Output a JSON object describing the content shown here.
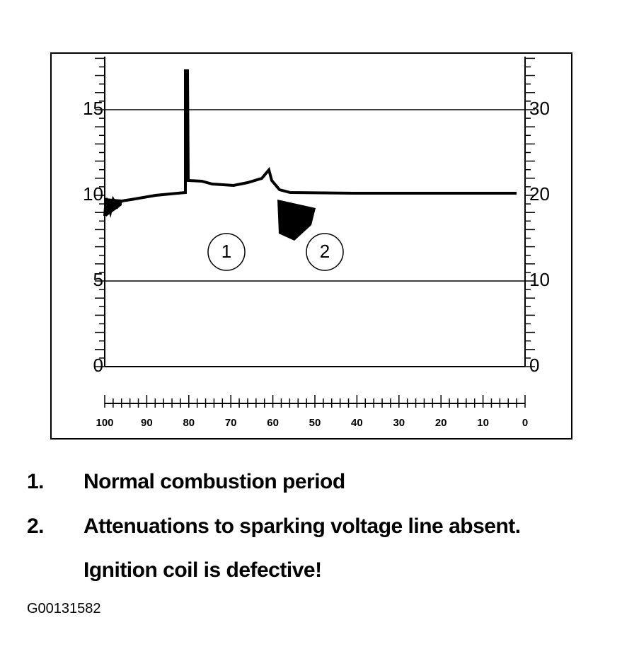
{
  "left_axis": [
    0,
    5,
    10,
    15
  ],
  "right_axis": [
    0,
    10,
    20,
    30
  ],
  "x_axis": [
    100,
    90,
    80,
    70,
    60,
    50,
    40,
    30,
    20,
    10,
    0
  ],
  "callouts": [
    "1",
    "2"
  ],
  "legend": [
    {
      "number": "1.",
      "lines": [
        "Normal combustion period"
      ]
    },
    {
      "number": "2.",
      "lines": [
        "Attenuations to sparking voltage line absent.",
        "Ignition coil is defective!"
      ]
    }
  ],
  "figure_id": "G00131582"
}
